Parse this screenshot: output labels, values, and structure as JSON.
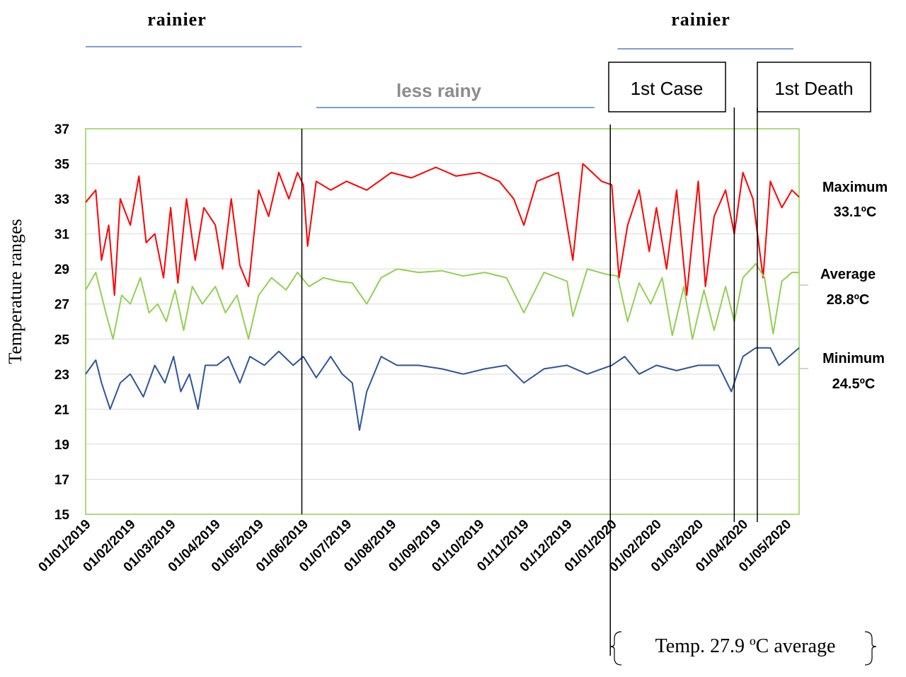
{
  "chart_data": {
    "type": "line",
    "title": "",
    "xlabel": "",
    "ylabel": "Temperature ranges",
    "ylim": [
      15,
      37
    ],
    "y_ticks": [
      "15",
      "17",
      "19",
      "21",
      "23",
      "25",
      "27",
      "29",
      "31",
      "33",
      "35",
      "37"
    ],
    "x_ticks": [
      "01/01/2019",
      "01/02/2019",
      "01/03/2019",
      "01/04/2019",
      "01/05/2019",
      "01/06/2019",
      "01/07/2019",
      "01/08/2019",
      "01/09/2019",
      "01/10/2019",
      "01/11/2019",
      "01/12/2019",
      "01/01/2020",
      "01/02/2020",
      "01/03/2020",
      "01/04/2020",
      "01/05/2020"
    ],
    "x_range": [
      "2019-01-01",
      "2020-05-10"
    ],
    "grid": true,
    "colors": {
      "maximum": "#ff0000",
      "average": "#92d050",
      "minimum": "#2f5597",
      "plot_border": "#92d050",
      "season_line": "#7f9fd0",
      "grid": "#d9d9d9"
    },
    "series": [
      {
        "key": "maximum",
        "label": "Maximum",
        "value_label": "33.1ºC",
        "points": [
          [
            "2019-01-01",
            32.8
          ],
          [
            "2019-01-08",
            33.5
          ],
          [
            "2019-01-12",
            29.5
          ],
          [
            "2019-01-17",
            31.5
          ],
          [
            "2019-01-21",
            27.5
          ],
          [
            "2019-01-25",
            33.0
          ],
          [
            "2019-02-01",
            31.5
          ],
          [
            "2019-02-07",
            34.3
          ],
          [
            "2019-02-12",
            30.5
          ],
          [
            "2019-02-18",
            31.0
          ],
          [
            "2019-02-24",
            28.5
          ],
          [
            "2019-03-01",
            32.5
          ],
          [
            "2019-03-06",
            28.2
          ],
          [
            "2019-03-12",
            33.0
          ],
          [
            "2019-03-18",
            29.5
          ],
          [
            "2019-03-24",
            32.5
          ],
          [
            "2019-04-01",
            31.5
          ],
          [
            "2019-04-06",
            29.0
          ],
          [
            "2019-04-12",
            33.0
          ],
          [
            "2019-04-18",
            29.2
          ],
          [
            "2019-04-24",
            28.0
          ],
          [
            "2019-05-01",
            33.5
          ],
          [
            "2019-05-08",
            32.0
          ],
          [
            "2019-05-15",
            34.5
          ],
          [
            "2019-05-22",
            33.0
          ],
          [
            "2019-05-28",
            34.5
          ],
          [
            "2019-06-01",
            33.8
          ],
          [
            "2019-06-04",
            30.3
          ],
          [
            "2019-06-10",
            34.0
          ],
          [
            "2019-06-20",
            33.5
          ],
          [
            "2019-07-01",
            34.0
          ],
          [
            "2019-07-15",
            33.5
          ],
          [
            "2019-08-01",
            34.5
          ],
          [
            "2019-08-15",
            34.2
          ],
          [
            "2019-09-01",
            34.8
          ],
          [
            "2019-09-15",
            34.3
          ],
          [
            "2019-10-01",
            34.5
          ],
          [
            "2019-10-15",
            34.0
          ],
          [
            "2019-10-25",
            33.0
          ],
          [
            "2019-11-01",
            31.5
          ],
          [
            "2019-11-10",
            34.0
          ],
          [
            "2019-11-25",
            34.5
          ],
          [
            "2019-12-05",
            29.5
          ],
          [
            "2019-12-12",
            35.0
          ],
          [
            "2019-12-25",
            34.0
          ],
          [
            "2020-01-01",
            33.8
          ],
          [
            "2020-01-06",
            28.5
          ],
          [
            "2020-01-12",
            31.5
          ],
          [
            "2020-01-20",
            33.5
          ],
          [
            "2020-01-27",
            30.0
          ],
          [
            "2020-02-01",
            32.5
          ],
          [
            "2020-02-08",
            29.0
          ],
          [
            "2020-02-15",
            33.5
          ],
          [
            "2020-02-22",
            27.5
          ],
          [
            "2020-03-01",
            34.0
          ],
          [
            "2020-03-06",
            28.0
          ],
          [
            "2020-03-12",
            32.0
          ],
          [
            "2020-03-20",
            33.5
          ],
          [
            "2020-03-26",
            31.0
          ],
          [
            "2020-04-01",
            34.5
          ],
          [
            "2020-04-08",
            33.0
          ],
          [
            "2020-04-15",
            28.5
          ],
          [
            "2020-04-20",
            34.0
          ],
          [
            "2020-04-28",
            32.5
          ],
          [
            "2020-05-05",
            33.5
          ],
          [
            "2020-05-10",
            33.1
          ]
        ]
      },
      {
        "key": "average",
        "label": "Average",
        "value_label": "28.8ºC",
        "points": [
          [
            "2019-01-01",
            27.8
          ],
          [
            "2019-01-08",
            28.8
          ],
          [
            "2019-01-15",
            26.5
          ],
          [
            "2019-01-20",
            25.0
          ],
          [
            "2019-01-26",
            27.5
          ],
          [
            "2019-02-01",
            27.0
          ],
          [
            "2019-02-08",
            28.5
          ],
          [
            "2019-02-14",
            26.5
          ],
          [
            "2019-02-20",
            27.0
          ],
          [
            "2019-02-26",
            26.0
          ],
          [
            "2019-03-04",
            27.8
          ],
          [
            "2019-03-10",
            25.5
          ],
          [
            "2019-03-16",
            28.0
          ],
          [
            "2019-03-23",
            27.0
          ],
          [
            "2019-04-01",
            28.0
          ],
          [
            "2019-04-08",
            26.5
          ],
          [
            "2019-04-16",
            27.5
          ],
          [
            "2019-04-24",
            25.0
          ],
          [
            "2019-05-01",
            27.5
          ],
          [
            "2019-05-10",
            28.5
          ],
          [
            "2019-05-20",
            27.8
          ],
          [
            "2019-05-28",
            28.8
          ],
          [
            "2019-06-05",
            28.0
          ],
          [
            "2019-06-15",
            28.5
          ],
          [
            "2019-06-25",
            28.3
          ],
          [
            "2019-07-05",
            28.2
          ],
          [
            "2019-07-15",
            27.0
          ],
          [
            "2019-07-25",
            28.5
          ],
          [
            "2019-08-05",
            29.0
          ],
          [
            "2019-08-20",
            28.8
          ],
          [
            "2019-09-05",
            28.9
          ],
          [
            "2019-09-20",
            28.6
          ],
          [
            "2019-10-05",
            28.8
          ],
          [
            "2019-10-20",
            28.5
          ],
          [
            "2019-11-01",
            26.5
          ],
          [
            "2019-11-15",
            28.8
          ],
          [
            "2019-12-01",
            28.3
          ],
          [
            "2019-12-05",
            26.3
          ],
          [
            "2019-12-15",
            29.0
          ],
          [
            "2019-12-28",
            28.7
          ],
          [
            "2020-01-05",
            28.6
          ],
          [
            "2020-01-12",
            26.0
          ],
          [
            "2020-01-20",
            28.2
          ],
          [
            "2020-01-28",
            27.0
          ],
          [
            "2020-02-05",
            28.5
          ],
          [
            "2020-02-12",
            25.2
          ],
          [
            "2020-02-20",
            28.0
          ],
          [
            "2020-02-26",
            25.0
          ],
          [
            "2020-03-05",
            27.8
          ],
          [
            "2020-03-12",
            25.5
          ],
          [
            "2020-03-20",
            28.0
          ],
          [
            "2020-03-26",
            26.0
          ],
          [
            "2020-04-01",
            28.5
          ],
          [
            "2020-04-10",
            29.3
          ],
          [
            "2020-04-16",
            28.5
          ],
          [
            "2020-04-22",
            25.3
          ],
          [
            "2020-04-28",
            28.3
          ],
          [
            "2020-05-05",
            28.8
          ],
          [
            "2020-05-10",
            28.8
          ]
        ]
      },
      {
        "key": "minimum",
        "label": "Minimum",
        "value_label": "24.5ºC",
        "points": [
          [
            "2019-01-01",
            23.0
          ],
          [
            "2019-01-08",
            23.8
          ],
          [
            "2019-01-12",
            22.5
          ],
          [
            "2019-01-18",
            21.0
          ],
          [
            "2019-01-25",
            22.5
          ],
          [
            "2019-02-01",
            23.0
          ],
          [
            "2019-02-10",
            21.7
          ],
          [
            "2019-02-18",
            23.5
          ],
          [
            "2019-02-25",
            22.5
          ],
          [
            "2019-03-03",
            24.0
          ],
          [
            "2019-03-08",
            22.0
          ],
          [
            "2019-03-14",
            23.0
          ],
          [
            "2019-03-20",
            21.0
          ],
          [
            "2019-03-25",
            23.5
          ],
          [
            "2019-04-02",
            23.5
          ],
          [
            "2019-04-10",
            24.0
          ],
          [
            "2019-04-18",
            22.5
          ],
          [
            "2019-04-25",
            24.0
          ],
          [
            "2019-05-05",
            23.5
          ],
          [
            "2019-05-15",
            24.3
          ],
          [
            "2019-05-25",
            23.5
          ],
          [
            "2019-06-01",
            24.0
          ],
          [
            "2019-06-10",
            22.8
          ],
          [
            "2019-06-20",
            24.0
          ],
          [
            "2019-06-28",
            23.0
          ],
          [
            "2019-07-05",
            22.5
          ],
          [
            "2019-07-10",
            19.8
          ],
          [
            "2019-07-15",
            22.0
          ],
          [
            "2019-07-25",
            24.0
          ],
          [
            "2019-08-05",
            23.5
          ],
          [
            "2019-08-20",
            23.5
          ],
          [
            "2019-09-05",
            23.3
          ],
          [
            "2019-09-20",
            23.0
          ],
          [
            "2019-10-05",
            23.3
          ],
          [
            "2019-10-20",
            23.5
          ],
          [
            "2019-11-01",
            22.5
          ],
          [
            "2019-11-15",
            23.3
          ],
          [
            "2019-12-01",
            23.5
          ],
          [
            "2019-12-15",
            23.0
          ],
          [
            "2020-01-01",
            23.5
          ],
          [
            "2020-01-10",
            24.0
          ],
          [
            "2020-01-20",
            23.0
          ],
          [
            "2020-02-01",
            23.5
          ],
          [
            "2020-02-15",
            23.2
          ],
          [
            "2020-03-01",
            23.5
          ],
          [
            "2020-03-15",
            23.5
          ],
          [
            "2020-03-24",
            22.0
          ],
          [
            "2020-04-01",
            24.0
          ],
          [
            "2020-04-10",
            24.5
          ],
          [
            "2020-04-20",
            24.5
          ],
          [
            "2020-04-26",
            23.5
          ],
          [
            "2020-05-03",
            24.0
          ],
          [
            "2020-05-10",
            24.5
          ]
        ]
      }
    ],
    "event_lines": [
      {
        "date": "2019-05-31",
        "label": ""
      },
      {
        "date": "2019-12-31",
        "label": ""
      },
      {
        "date": "2020-03-26",
        "label": "1st Case"
      },
      {
        "date": "2020-04-11",
        "label": "1st Death"
      }
    ],
    "seasons": [
      {
        "label": "rainier",
        "start": "2019-01-01",
        "end": "2019-05-31"
      },
      {
        "label": "less rainy",
        "start": "2019-06-10",
        "end": "2019-12-20"
      },
      {
        "label": "rainier",
        "start": "2020-01-05",
        "end": "2020-05-10"
      }
    ],
    "bottom_note": "Temp. 27.9 ºC average"
  }
}
